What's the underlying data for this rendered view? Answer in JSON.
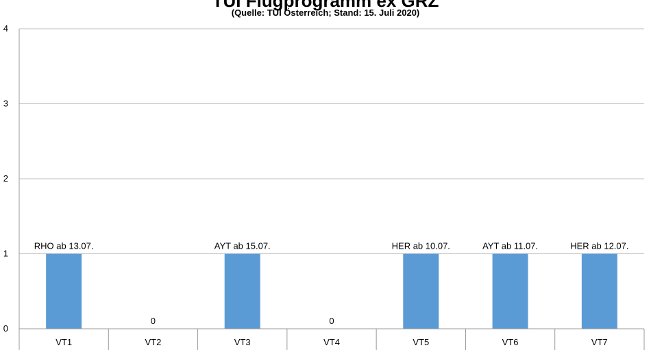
{
  "chart_data": {
    "type": "bar",
    "title": "TUI Flugprogramm ex GRZ",
    "subtitle": "(Quelle: TUI Österreich; Stand: 15. Juli 2020)",
    "categories": [
      "VT1",
      "VT2",
      "VT3",
      "VT4",
      "VT5",
      "VT6",
      "VT7"
    ],
    "values": [
      1,
      0,
      1,
      0,
      1,
      1,
      1
    ],
    "data_labels": [
      "RHO ab 13.07.",
      "0",
      "AYT ab 15.07.",
      "0",
      "HER ab 10.07.",
      "AYT ab 11.07.",
      "HER ab 12.07."
    ],
    "ylim": [
      0,
      4
    ],
    "yticks": [
      "0",
      "1",
      "2",
      "3",
      "4"
    ],
    "grid": true,
    "bar_color": "#5b9bd5",
    "gridline_color": "#bfbfbf",
    "axis_color": "#999999"
  }
}
